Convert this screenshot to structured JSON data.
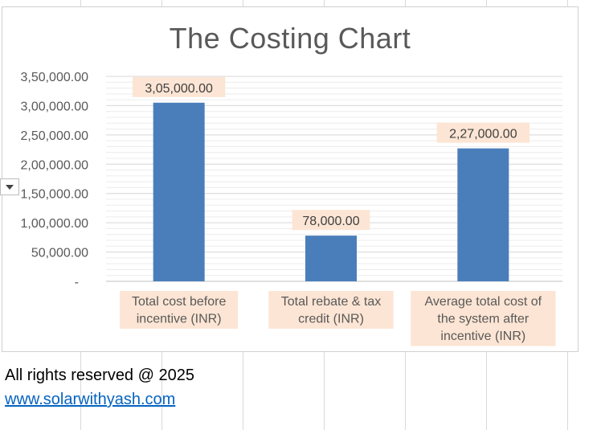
{
  "chart_data": {
    "type": "bar",
    "title": "The Costing Chart",
    "categories": [
      [
        "Total cost before",
        "incentive (INR)"
      ],
      [
        "Total rebate & tax",
        "credit (INR)"
      ],
      [
        "Average total cost of",
        "the system after",
        "incentive (INR)"
      ]
    ],
    "values": [
      305000,
      78000,
      227000
    ],
    "data_labels": [
      "3,05,000.00",
      "78,000.00",
      "2,27,000.00"
    ],
    "ylim": [
      0,
      350000
    ],
    "y_ticks": [
      0,
      50000,
      100000,
      150000,
      200000,
      250000,
      300000,
      350000
    ],
    "y_tick_labels": [
      "-",
      "50,000.00",
      "1,00,000.00",
      "1,50,000.00",
      "2,00,000.00",
      "2,50,000.00",
      "3,00,000.00",
      "3,50,000.00"
    ],
    "minor_gridlines": true,
    "colors": {
      "bar": "#4a7ebb",
      "label_bg": "#fce5d4",
      "gridline": "#d9d9d9",
      "axis": "#bfbfbf",
      "tick_text": "#595959",
      "title": "#595959"
    }
  },
  "footer": {
    "rights": "All rights reserved @ 2025",
    "link": "www.solarwithyash.com"
  }
}
